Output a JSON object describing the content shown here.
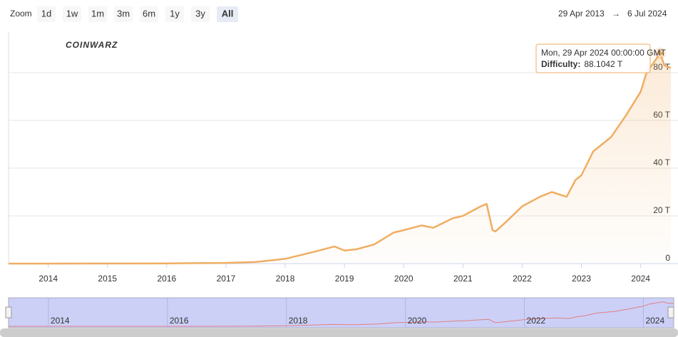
{
  "range_selector": {
    "label": "Zoom",
    "buttons": [
      "1d",
      "1w",
      "1m",
      "3m",
      "6m",
      "1y",
      "3y",
      "All"
    ],
    "selected": "All"
  },
  "date_range": {
    "from": "29 Apr 2013",
    "arrow": "→",
    "to": "6 Jul 2024"
  },
  "watermark": "COINWARZ",
  "chart_data": {
    "type": "line",
    "color": "#f0ad62",
    "x": [
      2013.33,
      2014,
      2015,
      2016,
      2017,
      2017.5,
      2018,
      2018.5,
      2018.83,
      2019,
      2019.2,
      2019.5,
      2019.83,
      2020,
      2020.3,
      2020.5,
      2020.83,
      2021,
      2021.3,
      2021.4,
      2021.5,
      2021.55,
      2021.75,
      2022,
      2022.3,
      2022.5,
      2022.75,
      2022.9,
      2023,
      2023.2,
      2023.5,
      2023.75,
      2024,
      2024.1,
      2024.33,
      2024.4,
      2024.51
    ],
    "series": [
      {
        "name": "Difficulty",
        "color": "#f0ad62",
        "values": [
          0,
          0,
          0.04,
          0.1,
          0.3,
          0.7,
          2,
          5,
          7.2,
          5.5,
          6,
          8,
          13,
          14,
          16,
          15,
          19,
          20,
          24,
          25,
          14,
          13.5,
          18,
          24,
          28,
          30,
          28,
          35,
          37,
          47,
          53,
          62,
          72,
          80,
          88.1042,
          83,
          82
        ]
      }
    ],
    "xlim": [
      2013.33,
      2024.51
    ],
    "xticks": [
      2014,
      2015,
      2016,
      2017,
      2018,
      2019,
      2020,
      2021,
      2022,
      2023,
      2024
    ],
    "ylim": [
      0,
      97
    ],
    "yticks": [
      0,
      {
        "value": 20,
        "label": "20 T"
      },
      {
        "value": 40,
        "label": "40 T"
      },
      {
        "value": 60,
        "label": "60 T"
      },
      {
        "value": 80,
        "label": "80 T"
      }
    ],
    "grid": true,
    "tooltip": {
      "date": "Mon, 29 Apr 2024 00:00:00 GMT",
      "label": "Difficulty:",
      "value_label": "88.1042 T",
      "point": 34
    },
    "navigator": {
      "xticks": [
        2014,
        2016,
        2018,
        2020,
        2022,
        2024
      ]
    }
  }
}
